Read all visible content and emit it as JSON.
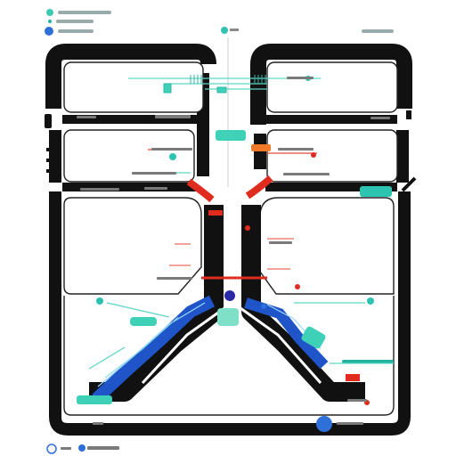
{
  "title": "",
  "legend": {
    "items": [
      {
        "swatch": "#3ec9b0",
        "label": ""
      },
      {
        "swatch": "#22b5a6",
        "label": ""
      },
      {
        "swatch": "#2f6fd8",
        "label": ""
      }
    ]
  },
  "footer": {
    "items": [
      {
        "swatch": "#2f6fd8",
        "label": ""
      },
      {
        "swatch": "#2f6fd8",
        "label": ""
      }
    ]
  },
  "colors": {
    "frame": "#111111",
    "teal": "#3fd0b8",
    "teal_dark": "#1fb3a0",
    "blue": "#1f55c8",
    "blue_dot": "#2f6fd8",
    "red": "#e02b1f",
    "orange": "#f07a2a",
    "placeholder": "#6a6a6a",
    "background": "#ffffff"
  },
  "icons": [
    "legend-dot-icon",
    "node-dot-icon",
    "connector-line-icon"
  ]
}
